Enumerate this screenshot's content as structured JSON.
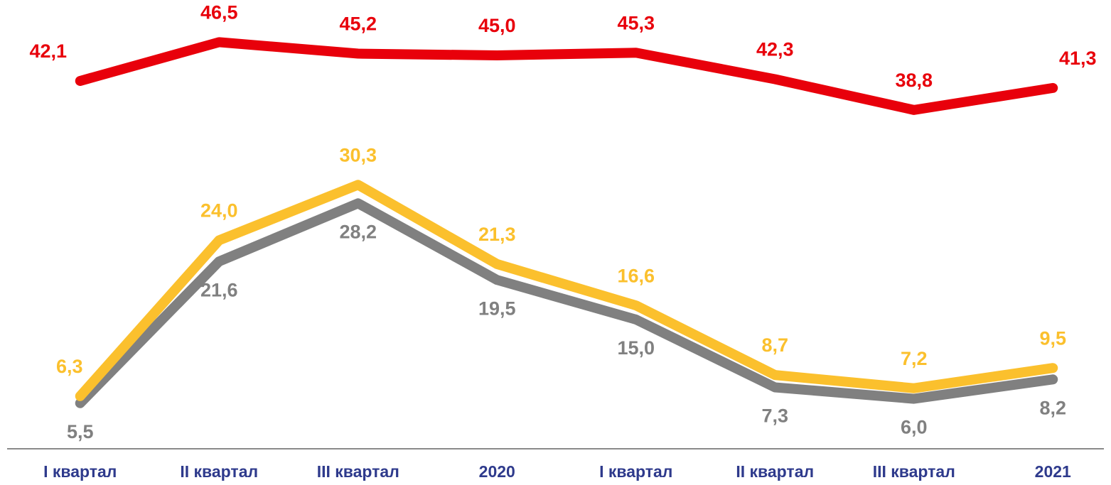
{
  "chart_data": {
    "type": "line",
    "categories": [
      "I квартал",
      "II квартал",
      "III квартал",
      "2020",
      "I квартал",
      "II квартал",
      "III квартал",
      "2021"
    ],
    "series": [
      {
        "color": "#e8000b",
        "values": [
          42.1,
          46.5,
          45.2,
          45.0,
          45.3,
          42.3,
          38.8,
          41.3
        ],
        "value_labels": [
          "42,1",
          "46,5",
          "45,2",
          "45,0",
          "45,3",
          "42,3",
          "38,8",
          "41,3"
        ]
      },
      {
        "color": "#fbc02d",
        "values": [
          6.3,
          24.0,
          30.3,
          21.3,
          16.6,
          8.7,
          7.2,
          9.5
        ],
        "value_labels": [
          "6,3",
          "24,0",
          "30,3",
          "21,3",
          "16,6",
          "8,7",
          "7,2",
          "9,5"
        ]
      },
      {
        "color": "#808080",
        "values": [
          5.5,
          21.6,
          28.2,
          19.5,
          15.0,
          7.3,
          6.0,
          8.2
        ],
        "value_labels": [
          "5,5",
          "21,6",
          "28,2",
          "19,5",
          "15,0",
          "7,3",
          "6,0",
          "8,2"
        ]
      }
    ],
    "ylim": [
      0,
      50
    ]
  }
}
